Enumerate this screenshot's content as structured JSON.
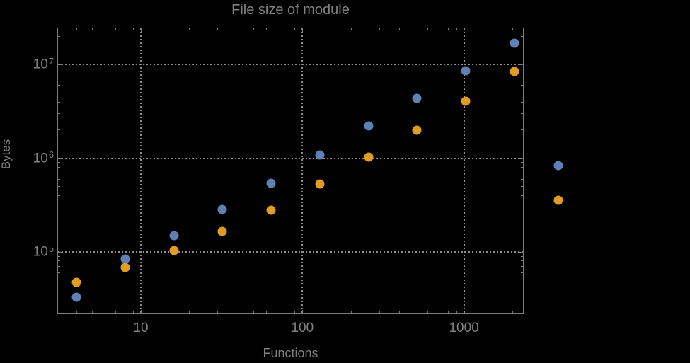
{
  "colors": {
    "background": "#000000",
    "frame": "#7c7c7c",
    "gridline": "#8c8c8c",
    "text": "#808080",
    "series1": "#5E81B5",
    "series2": "#E19C24"
  },
  "chart_data": {
    "type": "scatter",
    "title": "File size of module",
    "xlabel": "Functions",
    "ylabel": "Bytes",
    "x_scale": "log",
    "y_scale": "log",
    "x_range": [
      3.05,
      2340
    ],
    "y_range": [
      21600,
      24900000
    ],
    "grid": "dotted at decades",
    "legend_position": "none",
    "x_ticks": [
      {
        "value": 10,
        "label": "10"
      },
      {
        "value": 100,
        "label": "100"
      },
      {
        "value": 1000,
        "label": "1000"
      }
    ],
    "y_ticks": [
      {
        "value": 100000,
        "base": "10",
        "exp": "5"
      },
      {
        "value": 1000000,
        "base": "10",
        "exp": "6"
      },
      {
        "value": 10000000,
        "base": "10",
        "exp": "7"
      }
    ],
    "x_minor_ticks": [
      4,
      5,
      6,
      7,
      8,
      9,
      20,
      30,
      40,
      50,
      60,
      70,
      80,
      90,
      200,
      300,
      400,
      500,
      600,
      700,
      800,
      900,
      2000
    ],
    "y_minor_ticks": [
      30000,
      40000,
      50000,
      60000,
      70000,
      80000,
      90000,
      200000,
      300000,
      400000,
      500000,
      600000,
      700000,
      800000,
      900000,
      2000000,
      3000000,
      4000000,
      5000000,
      6000000,
      7000000,
      8000000,
      9000000,
      20000000
    ],
    "series": [
      {
        "name": "series-1-blue",
        "color": "#5E81B5",
        "points": [
          [
            4,
            33000
          ],
          [
            8,
            84000
          ],
          [
            16,
            148000
          ],
          [
            32,
            284000
          ],
          [
            64,
            540000
          ],
          [
            128,
            1090000
          ],
          [
            256,
            2200000
          ],
          [
            512,
            4370000
          ],
          [
            1024,
            8600000
          ],
          [
            2048,
            17100000
          ],
          [
            3840,
            832000
          ]
        ]
      },
      {
        "name": "series-2-orange",
        "color": "#E19C24",
        "points": [
          [
            4,
            47500
          ],
          [
            8,
            68000
          ],
          [
            16,
            103000
          ],
          [
            32,
            167000
          ],
          [
            64,
            281000
          ],
          [
            128,
            532000
          ],
          [
            256,
            1030000
          ],
          [
            512,
            2000000
          ],
          [
            1024,
            4050000
          ],
          [
            2048,
            8420000
          ],
          [
            3840,
            358000
          ]
        ]
      }
    ],
    "note": "The final point of each series is drawn outside the right edge of the plot frame."
  }
}
